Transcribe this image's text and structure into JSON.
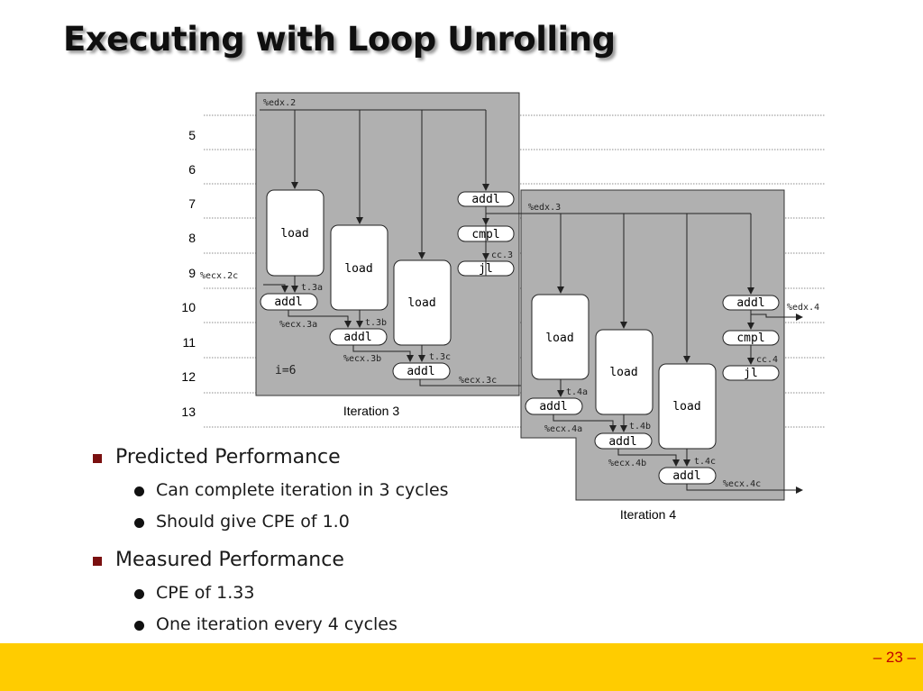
{
  "title": "Executing with Loop Unrolling",
  "diagram": {
    "cycles": [
      "5",
      "6",
      "7",
      "8",
      "9",
      "10",
      "11",
      "12",
      "13"
    ],
    "iter3": {
      "caption": "Iteration 3",
      "edx_in": "%edx.2",
      "ops": [
        "load",
        "load",
        "load",
        "addl",
        "addl",
        "addl",
        "addl",
        "cmpl",
        "jl"
      ],
      "ecx_in": "%ecx.2c",
      "t": [
        "t.3a",
        "t.3b",
        "t.3c"
      ],
      "ecx": [
        "%ecx.3a",
        "%ecx.3b",
        "%ecx.3c"
      ],
      "cc": "cc.3",
      "i": "i=6"
    },
    "iter4": {
      "caption": "Iteration 4",
      "edx_in": "%edx.3",
      "ops": [
        "load",
        "load",
        "load",
        "addl",
        "addl",
        "addl",
        "addl",
        "cmpl",
        "jl"
      ],
      "t": [
        "t.4a",
        "t.4b",
        "t.4c"
      ],
      "ecx": [
        "%ecx.4a",
        "%ecx.4b",
        "%ecx.4c"
      ],
      "cc": "cc.4",
      "edx_out": "%edx.4"
    },
    "colors": {
      "panel": "#b0b0b0",
      "node": "#ffffff",
      "line": "#222222"
    }
  },
  "sections": [
    {
      "heading": "Predicted Performance",
      "items": [
        "Can complete iteration in 3 cycles",
        "Should give CPE of 1.0"
      ]
    },
    {
      "heading": "Measured Performance",
      "items": [
        "CPE of 1.33",
        "One iteration every 4 cycles"
      ]
    }
  ],
  "page_number": "– 23 –",
  "colors": {
    "footer": "#ffcc00",
    "page_number": "#c00000",
    "bullet_square": "#7a1010"
  }
}
